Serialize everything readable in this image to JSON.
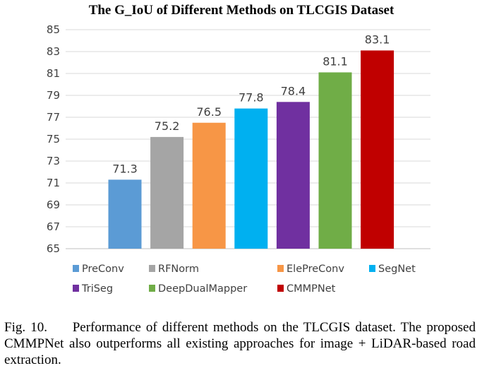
{
  "chart_data": {
    "type": "bar",
    "title": "The G_IoU of Different Methods on TLCGIS Dataset",
    "xlabel": "",
    "ylabel": "",
    "ylim": [
      65,
      85
    ],
    "yticks": [
      65,
      67,
      69,
      71,
      73,
      75,
      77,
      79,
      81,
      83,
      85
    ],
    "grid": true,
    "legend_position": "bottom",
    "categories": [
      "PreConv",
      "RFNorm",
      "ElePreConv",
      "SegNet",
      "TriSeg",
      "DeepDualMapper",
      "CMMPNet"
    ],
    "values": [
      71.3,
      75.2,
      76.5,
      77.8,
      78.4,
      81.1,
      83.1
    ],
    "value_labels": [
      "71.3",
      "75.2",
      "76.5",
      "77.8",
      "78.4",
      "81.1",
      "83.1"
    ],
    "colors": [
      "#5b9bd5",
      "#a5a5a5",
      "#f79646",
      "#00b0f0",
      "#7030a0",
      "#70ad47",
      "#c00000"
    ]
  },
  "caption": {
    "label": "Fig. 10.",
    "text": "Performance of different methods on the TLCGIS dataset. The proposed CMMPNet also outperforms all existing approaches for image + LiDAR-based road extraction."
  }
}
